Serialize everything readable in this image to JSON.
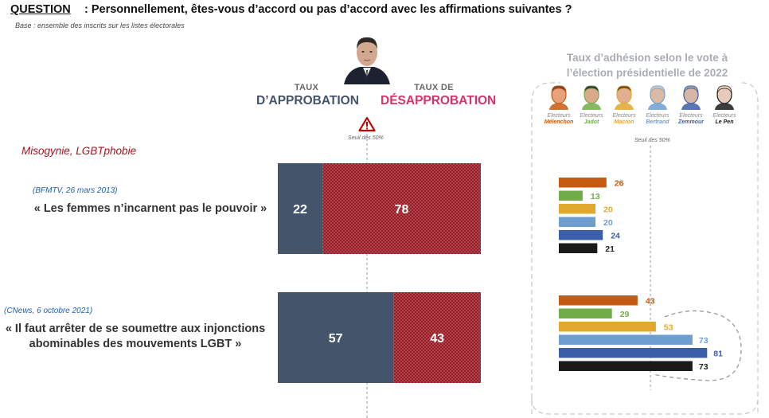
{
  "header": {
    "question_label": "QUESTION",
    "question_text": " :  Personnellement, êtes-vous d’accord ou pas d’accord avec les affirmations suivantes ?",
    "base": "Base : ensemble des inscrits sur les listes électorales"
  },
  "columns": {
    "approval_small": "TAUX",
    "approval_big": "D’APPROBATION",
    "disapproval_small": "TAUX DE",
    "disapproval_big": "DÉSAPPROBATION",
    "threshold_label": "Seuil des 50%"
  },
  "category": "Misogynie, LGBTphobie",
  "right_panel": {
    "title_line1": "Taux d’adhésion selon le vote à",
    "title_line2": "l’élection présidentielle de 2022",
    "threshold_label": "Seuil des 50%",
    "voter_prefix": "Electeurs",
    "electorates": [
      {
        "name": "Mélenchon",
        "color": "#c55a11"
      },
      {
        "name": "Jadot",
        "color": "#70ad47"
      },
      {
        "name": "Macron",
        "color": "#e0a82e"
      },
      {
        "name": "Bertrand",
        "color": "#6e9ecf"
      },
      {
        "name": "Zemmour",
        "color": "#3b5ea8"
      },
      {
        "name": "Le Pen",
        "color": "#1a1a1a"
      }
    ]
  },
  "statements": [
    {
      "source": "(BFMTV, 26 mars 2013)",
      "quote_line1": "« Les femmes n’incarnent pas le pouvoir »",
      "quote_line2": ""
    },
    {
      "source": "(CNews, 6 octobre 2021)",
      "quote_line1": "« Il faut arrêter de se soumettre aux injonctions",
      "quote_line2": "abominables des mouvements LGBT »"
    }
  ],
  "chart_data": [
    {
      "type": "bar",
      "stacked": true,
      "orientation": "horizontal",
      "categories": [
        "« Les femmes n’incarnent pas le pouvoir »",
        "« Il faut arrêter de se soumettre aux injonctions abominables des mouvements LGBT »"
      ],
      "series": [
        {
          "name": "TAUX D’APPROBATION",
          "values": [
            22,
            57
          ],
          "color": "#44546a"
        },
        {
          "name": "TAUX DE DÉSAPPROBATION",
          "values": [
            78,
            43
          ],
          "color": "#a31621"
        }
      ],
      "xlim": [
        0,
        100
      ],
      "threshold": 50
    },
    {
      "type": "bar",
      "orientation": "horizontal",
      "categories": [
        "Mélenchon",
        "Jadot",
        "Macron",
        "Bertrand",
        "Zemmour",
        "Le Pen"
      ],
      "series": [
        {
          "values": [
            26,
            13,
            20,
            20,
            24,
            21
          ]
        },
        {
          "values": [
            43,
            29,
            53,
            73,
            81,
            73
          ]
        }
      ],
      "colors": [
        "#c55a11",
        "#70ad47",
        "#e0a82e",
        "#6e9ecf",
        "#3b5ea8",
        "#1a1a1a"
      ],
      "threshold": 50
    }
  ]
}
